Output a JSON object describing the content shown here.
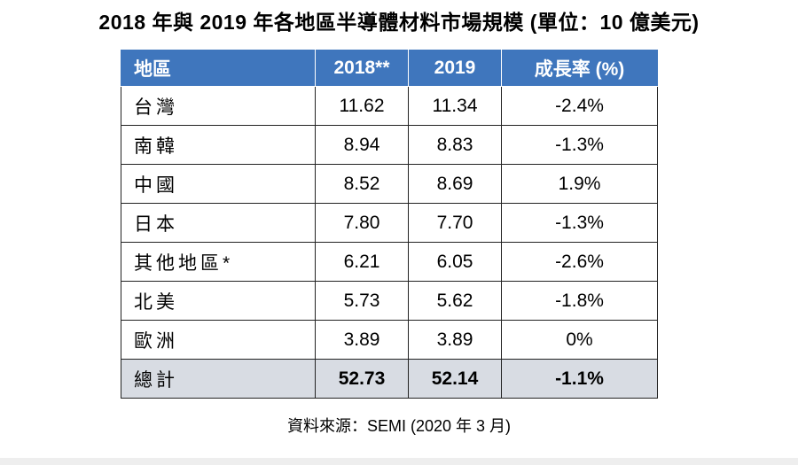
{
  "title": "2018 年與 2019 年各地區半導體材料市場規模 (單位：10 億美元)",
  "table": {
    "headers": [
      "地區",
      "2018**",
      "2019",
      "成長率 (%)"
    ],
    "rows": [
      [
        "台灣",
        "11.62",
        "11.34",
        "-2.4%"
      ],
      [
        "南韓",
        "8.94",
        "8.83",
        "-1.3%"
      ],
      [
        "中國",
        "8.52",
        "8.69",
        "1.9%"
      ],
      [
        "日本",
        "7.80",
        "7.70",
        "-1.3%"
      ],
      [
        "其他地區*",
        "6.21",
        "6.05",
        "-2.6%"
      ],
      [
        "北美",
        "5.73",
        "5.62",
        "-1.8%"
      ],
      [
        "歐洲",
        "3.89",
        "3.89",
        "0%"
      ]
    ],
    "total": [
      "總計",
      "52.73",
      "52.14",
      "-1.1%"
    ]
  },
  "source": "資料來源：SEMI (2020 年 3 月)",
  "colors": {
    "header_bg": "#3f76bd",
    "total_bg": "#d8dce3"
  }
}
